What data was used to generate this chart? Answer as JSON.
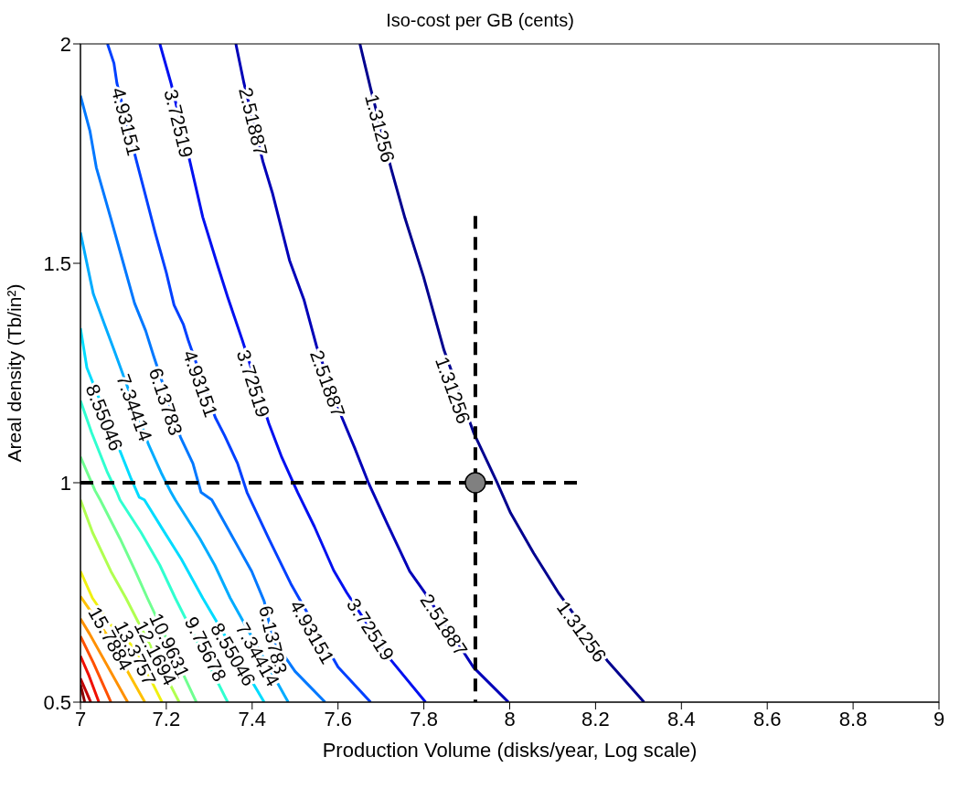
{
  "chart_data": {
    "type": "line",
    "title": "Iso-cost per GB (cents)",
    "xlabel": "Production Volume (disks/year, Log scale)",
    "ylabel": "Areal density (Tb/in²)",
    "xlim": [
      7,
      9
    ],
    "xticks": [
      7,
      7.2,
      7.4,
      7.6,
      7.8,
      8,
      8.2,
      8.4,
      8.6,
      8.8,
      9
    ],
    "ylim": [
      0.5,
      2
    ],
    "yticks": [
      0.5,
      1,
      1.5,
      2
    ],
    "grid": false,
    "legend": false,
    "marker": "none",
    "line_style": "solid",
    "series": [
      {
        "color": "#00008f",
        "x": [
          7.651,
          7.676,
          7.724,
          7.756,
          7.799,
          7.847,
          7.916,
          7.97,
          8.002,
          8.056,
          8.115,
          8.227,
          8.313
        ],
        "values": [
          2,
          1.898,
          1.715,
          1.603,
          1.47,
          1.302,
          1.114,
          1.002,
          0.931,
          0.839,
          0.747,
          0.595,
          0.5
        ]
      },
      {
        "color": "#0000b8",
        "x": [
          7.362,
          7.381,
          7.425,
          7.447,
          7.487,
          7.521,
          7.55,
          7.609,
          7.639,
          7.67,
          7.713,
          7.767,
          7.804,
          7.916,
          7.997
        ],
        "values": [
          2,
          1.91,
          1.732,
          1.661,
          1.507,
          1.416,
          1.311,
          1.149,
          1.079,
          1.002,
          0.91,
          0.798,
          0.747,
          0.579,
          0.5
        ]
      },
      {
        "color": "#0010f0",
        "x": [
          7.185,
          7.211,
          7.255,
          7.285,
          7.318,
          7.343,
          7.377,
          7.439,
          7.469,
          7.506,
          7.545,
          7.59,
          7.62,
          7.676,
          7.724,
          7.804
        ],
        "values": [
          2,
          1.91,
          1.732,
          1.605,
          1.5,
          1.423,
          1.325,
          1.135,
          1.058,
          0.978,
          0.9,
          0.8,
          0.75,
          0.666,
          0.595,
          0.5
        ]
      },
      {
        "color": "#0040ff",
        "x": [
          7.063,
          7.078,
          7.085,
          7.13,
          7.148,
          7.174,
          7.2,
          7.218,
          7.24,
          7.251,
          7.314,
          7.336,
          7.366,
          7.388,
          7.44,
          7.49,
          7.6,
          7.676
        ],
        "values": [
          2,
          1.956,
          1.91,
          1.735,
          1.668,
          1.57,
          1.479,
          1.405,
          1.36,
          1.325,
          1.149,
          1.107,
          1.044,
          0.978,
          0.87,
          0.77,
          0.58,
          0.5
        ]
      },
      {
        "color": "#0078ff",
        "x": [
          7,
          7.022,
          7.037,
          7.07,
          7.1,
          7.126,
          7.152,
          7.17,
          7.233,
          7.262,
          7.281,
          7.306,
          7.399,
          7.428,
          7.449,
          7.5,
          7.57
        ],
        "values": [
          1.882,
          1.802,
          1.718,
          1.605,
          1.5,
          1.409,
          1.346,
          1.29,
          1.104,
          1.044,
          0.978,
          0.961,
          0.798,
          0.73,
          0.642,
          0.57,
          0.5
        ]
      },
      {
        "color": "#00acff",
        "x": [
          7,
          7.03,
          7.056,
          7.078,
          7.159,
          7.188,
          7.211,
          7.221,
          7.278,
          7.313,
          7.349,
          7.484
        ],
        "values": [
          1.57,
          1.43,
          1.361,
          1.303,
          1.086,
          1.023,
          0.978,
          0.961,
          0.873,
          0.812,
          0.737,
          0.5
        ]
      },
      {
        "color": "#00dcff",
        "x": [
          7,
          7.015,
          7.118,
          7.137,
          7.149,
          7.192,
          7.235,
          7.285,
          7.428
        ],
        "values": [
          1.352,
          1.262,
          1.009,
          0.967,
          0.961,
          0.893,
          0.826,
          0.737,
          0.5
        ]
      },
      {
        "color": "#30ffd0",
        "x": [
          7,
          7.026,
          7.063,
          7.085,
          7.092,
          7.141,
          7.185,
          7.221,
          7.343
        ],
        "values": [
          1.187,
          1.114,
          1.023,
          0.978,
          0.961,
          0.887,
          0.812,
          0.737,
          0.5
        ]
      },
      {
        "color": "#70ff90",
        "x": [
          7,
          7.034,
          7.046,
          7.092,
          7.128,
          7.156,
          7.27
        ],
        "values": [
          1.059,
          0.982,
          0.961,
          0.873,
          0.798,
          0.737,
          0.5
        ]
      },
      {
        "color": "#b0ff50",
        "x": [
          7,
          7.028,
          7.071,
          7.106,
          7.23
        ],
        "values": [
          0.961,
          0.887,
          0.798,
          0.737,
          0.5
        ]
      },
      {
        "color": "#f0f010",
        "x": [
          7,
          7.028,
          7.071,
          7.128,
          7.19
        ],
        "values": [
          0.798,
          0.737,
          0.676,
          0.621,
          0.5
        ]
      },
      {
        "color": "#ffc000",
        "x": [
          7,
          7.064,
          7.15
        ],
        "values": [
          0.741,
          0.65,
          0.5
        ]
      },
      {
        "color": "#ff9000",
        "x": [
          7,
          7.021,
          7.11
        ],
        "values": [
          0.69,
          0.656,
          0.5
        ]
      },
      {
        "color": "#ff5000",
        "x": [
          7,
          7.03,
          7.071
        ],
        "values": [
          0.65,
          0.59,
          0.5
        ]
      },
      {
        "color": "#f01000",
        "x": [
          7,
          7.02,
          7.043
        ],
        "values": [
          0.605,
          0.56,
          0.5
        ]
      },
      {
        "color": "#c00000",
        "x": [
          7,
          7.024
        ],
        "values": [
          0.554,
          0.5
        ]
      },
      {
        "color": "#880000",
        "x": [
          7,
          7.01
        ],
        "values": [
          0.54,
          0.5
        ]
      },
      {
        "color": "#000000",
        "line_style": "dashed",
        "x": [
          7,
          8.159
        ],
        "values": [
          1,
          1
        ]
      },
      {
        "color": "#000000",
        "line_style": "dashed",
        "x": [
          7.92,
          7.92
        ],
        "values": [
          1.608,
          0.5
        ]
      },
      {
        "type": "scatter",
        "marker": "circle",
        "color": "#808080",
        "x": [
          7.92
        ],
        "values": [
          1
        ]
      }
    ],
    "annotations": [
      {
        "text": "4.93151",
        "x": 7.107,
        "y": 1.823
      },
      {
        "text": "3.72519",
        "x": 7.229,
        "y": 1.819
      },
      {
        "text": "2.51887",
        "x": 7.403,
        "y": 1.823
      },
      {
        "text": "1.31256",
        "x": 7.698,
        "y": 1.808
      },
      {
        "text": "8.55046",
        "x": 7.056,
        "y": 1.149
      },
      {
        "text": "7.34414",
        "x": 7.126,
        "y": 1.171
      },
      {
        "text": "6.13783",
        "x": 7.199,
        "y": 1.185
      },
      {
        "text": "4.93151",
        "x": 7.28,
        "y": 1.226
      },
      {
        "text": "3.72519",
        "x": 7.403,
        "y": 1.226
      },
      {
        "text": "2.51887",
        "x": 7.576,
        "y": 1.226
      },
      {
        "text": "1.31256",
        "x": 7.868,
        "y": 1.211
      },
      {
        "text": "1.31256",
        "x": 8.168,
        "y": 0.661
      },
      {
        "text": "2.51887",
        "x": 7.847,
        "y": 0.676
      },
      {
        "text": "3.72519",
        "x": 7.676,
        "y": 0.666
      },
      {
        "text": "4.93151",
        "x": 7.54,
        "y": 0.66
      },
      {
        "text": "6.13783",
        "x": 7.449,
        "y": 0.642
      },
      {
        "text": "7.34414",
        "x": 7.413,
        "y": 0.609
      },
      {
        "text": "8.55046",
        "x": 7.356,
        "y": 0.609
      },
      {
        "text": "9.75678",
        "x": 7.292,
        "y": 0.621
      },
      {
        "text": "10.9631",
        "x": 7.208,
        "y": 0.629
      },
      {
        "text": "12.1694",
        "x": 7.175,
        "y": 0.612
      },
      {
        "text": "13.3757",
        "x": 7.128,
        "y": 0.612
      },
      {
        "text": "15.7884",
        "x": 7.07,
        "y": 0.645
      }
    ]
  }
}
